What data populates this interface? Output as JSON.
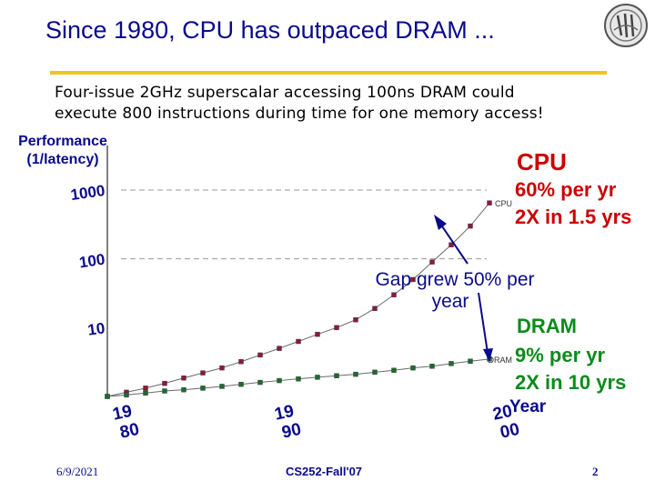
{
  "slide": {
    "title": "Since 1980, CPU has outpaced DRAM ...",
    "subtitle_line1": "Four-issue 2GHz superscalar accessing 100ns DRAM could",
    "subtitle_line2": "execute 800 instructions during time for one memory access!",
    "footer_date": "6/9/2021",
    "footer_course": "CS252-Fall'07",
    "footer_page": "2"
  },
  "colors": {
    "title": "#0a0a8c",
    "rule": "#f0c419",
    "cpu": "#cc0000",
    "dram": "#0a8c1a",
    "cpu_marker": "#8b1a3a",
    "dram_marker": "#1f6b2e"
  },
  "annotations": {
    "cpu_title": "CPU",
    "cpu_rate": "60% per yr",
    "cpu_double": "2X in 1.5 yrs",
    "gap_line1": "Gap grew 50% per",
    "gap_line2": "year",
    "dram_title": "DRAM",
    "dram_rate": "9% per yr",
    "dram_double": "2X in 10 yrs",
    "year_label": "Year"
  },
  "chart_data": {
    "type": "line",
    "title": "",
    "ylabel_line1": "Performance",
    "ylabel_line2": "(1/latency)",
    "xlabel": "Year",
    "yscale": "log",
    "ylim": [
      1,
      1000
    ],
    "xlim": [
      1980,
      2000
    ],
    "x_tick_labels": [
      {
        "value": 1980,
        "line1": "19",
        "line2": "80"
      },
      {
        "value": 1990,
        "line1": "19",
        "line2": "90"
      },
      {
        "value": 2000,
        "line1": "20",
        "line2": "00"
      }
    ],
    "y_ticks": [
      10,
      100,
      1000
    ],
    "y_tick_labels": [
      "10",
      "100",
      "1000"
    ],
    "gridlines": [
      100,
      1000
    ],
    "x": [
      1980,
      1981,
      1982,
      1983,
      1984,
      1985,
      1986,
      1987,
      1988,
      1989,
      1990,
      1991,
      1992,
      1993,
      1994,
      1995,
      1996,
      1997,
      1998,
      1999,
      2000
    ],
    "series": [
      {
        "name": "CPU",
        "label": "CPU",
        "values": [
          1,
          1.15,
          1.32,
          1.55,
          1.85,
          2.2,
          2.6,
          3.2,
          4,
          5,
          6.3,
          8,
          10,
          13,
          19,
          30,
          50,
          90,
          160,
          300,
          650
        ]
      },
      {
        "name": "DRAM",
        "label": "DRAM",
        "values": [
          1,
          1.05,
          1.12,
          1.2,
          1.25,
          1.32,
          1.4,
          1.5,
          1.6,
          1.7,
          1.8,
          1.9,
          2,
          2.1,
          2.25,
          2.4,
          2.6,
          2.75,
          3,
          3.25,
          3.5
        ]
      }
    ]
  }
}
